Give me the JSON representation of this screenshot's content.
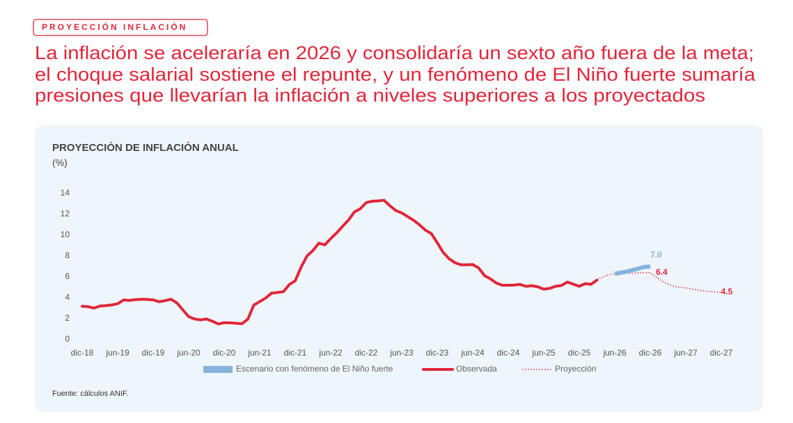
{
  "header": {
    "tag": "PROYECCIÓN INFLACIÓN",
    "title_lines": [
      "La inflación se aceleraría en 2026 y consolidaría un sexto año fuera de la meta;",
      "el choque salarial sostiene el repunte, y un fenómeno de El Niño fuerte sumaría",
      "presiones que llevarían la inflación a niveles superiores a los proyectados"
    ]
  },
  "chart_data": {
    "type": "line",
    "title": "PROYECCIÓN DE INFLACIÓN ANUAL",
    "y_label": "(%)",
    "categories": [
      "dic-18",
      null,
      null,
      null,
      null,
      null,
      "jun-19",
      null,
      null,
      null,
      null,
      null,
      "dic-19",
      null,
      null,
      null,
      null,
      null,
      "jun-20",
      null,
      null,
      null,
      null,
      null,
      "dic-20",
      null,
      null,
      null,
      null,
      null,
      "jun-21",
      null,
      null,
      null,
      null,
      null,
      "dic-21",
      null,
      null,
      null,
      null,
      null,
      "jun-22",
      null,
      null,
      null,
      null,
      null,
      "dic-22",
      null,
      null,
      null,
      null,
      null,
      "jun-23",
      null,
      null,
      null,
      null,
      null,
      "dic-23",
      null,
      null,
      null,
      null,
      null,
      "jun-24",
      null,
      null,
      null,
      null,
      null,
      "dic-24",
      null,
      null,
      null,
      null,
      null,
      "jun-25",
      null,
      null,
      null,
      null,
      null,
      "dic-25",
      null,
      null,
      null,
      null,
      null,
      "jun-26",
      null,
      null,
      null,
      null,
      null,
      "dic-26",
      null,
      null,
      null,
      null,
      null,
      "jun-27",
      null,
      null,
      null,
      null,
      null,
      "dic-27"
    ],
    "ylim": [
      0,
      14
    ],
    "yticks": [
      0,
      2,
      4,
      6,
      8,
      10,
      12,
      14
    ],
    "grid": false,
    "legend": "bottom",
    "series": [
      {
        "name": "Escenario con fenómeno de El Niño fuerte",
        "color": "#86b3dc",
        "line_style": "band",
        "values": [
          null,
          null,
          null,
          null,
          null,
          null,
          null,
          null,
          null,
          null,
          null,
          null,
          null,
          null,
          null,
          null,
          null,
          null,
          null,
          null,
          null,
          null,
          null,
          null,
          null,
          null,
          null,
          null,
          null,
          null,
          null,
          null,
          null,
          null,
          null,
          null,
          null,
          null,
          null,
          null,
          null,
          null,
          null,
          null,
          null,
          null,
          null,
          null,
          null,
          null,
          null,
          null,
          null,
          null,
          null,
          null,
          null,
          null,
          null,
          null,
          null,
          null,
          null,
          null,
          null,
          null,
          null,
          null,
          null,
          null,
          null,
          null,
          null,
          null,
          null,
          null,
          null,
          null,
          null,
          null,
          null,
          null,
          null,
          null,
          null,
          null,
          null,
          null,
          null,
          null,
          6.3,
          6.4,
          6.5,
          6.65,
          6.8,
          6.95,
          7.0,
          null,
          null,
          null,
          null,
          null,
          null,
          null,
          null,
          null,
          null,
          null,
          null
        ],
        "value_labels": [
          null,
          null,
          null,
          null,
          null,
          null,
          null,
          null,
          null,
          null,
          null,
          null,
          null,
          null,
          null,
          null,
          null,
          null,
          null,
          null,
          null,
          null,
          null,
          null,
          null,
          null,
          null,
          null,
          null,
          null,
          null,
          null,
          null,
          null,
          null,
          null,
          null,
          null,
          null,
          null,
          null,
          null,
          null,
          null,
          null,
          null,
          null,
          null,
          null,
          null,
          null,
          null,
          null,
          null,
          null,
          null,
          null,
          null,
          null,
          null,
          null,
          null,
          null,
          null,
          null,
          null,
          null,
          null,
          null,
          null,
          null,
          null,
          null,
          null,
          null,
          null,
          null,
          null,
          null,
          null,
          null,
          null,
          null,
          null,
          null,
          null,
          null,
          null,
          null,
          null,
          null,
          null,
          null,
          null,
          null,
          null,
          "7.0",
          null,
          null,
          null,
          null,
          null,
          null,
          null,
          null,
          null,
          null,
          null,
          null
        ]
      },
      {
        "name": "Observada",
        "color": "#e0263a",
        "line_style": "solid",
        "values": [
          3.18,
          3.15,
          3.01,
          3.21,
          3.25,
          3.31,
          3.43,
          3.79,
          3.75,
          3.82,
          3.86,
          3.84,
          3.8,
          3.62,
          3.72,
          3.86,
          3.51,
          2.85,
          2.19,
          1.97,
          1.88,
          1.97,
          1.75,
          1.49,
          1.61,
          1.6,
          1.56,
          1.51,
          1.95,
          3.3,
          3.63,
          3.97,
          4.44,
          4.51,
          4.58,
          5.26,
          5.62,
          6.94,
          8.01,
          8.53,
          9.23,
          9.07,
          9.67,
          10.21,
          10.84,
          11.44,
          12.22,
          12.53,
          13.12,
          13.25,
          13.28,
          13.34,
          12.82,
          12.36,
          12.13,
          11.78,
          11.43,
          10.99,
          10.48,
          10.15,
          9.28,
          8.35,
          7.74,
          7.36,
          7.16,
          7.16,
          7.18,
          6.86,
          6.12,
          5.81,
          5.41,
          5.2,
          5.2,
          5.22,
          5.28,
          5.09,
          5.16,
          5.05,
          4.82,
          4.9,
          5.1,
          5.18,
          5.51,
          5.3,
          5.1,
          5.35,
          5.29,
          5.7,
          null,
          null,
          null,
          null,
          null,
          null,
          null,
          null,
          null,
          null,
          null,
          null,
          null,
          null,
          null,
          null,
          null,
          null,
          null,
          null,
          null
        ]
      },
      {
        "name": "Proyección",
        "color": "#e0263a",
        "line_style": "dotted",
        "values": [
          null,
          null,
          null,
          null,
          null,
          null,
          null,
          null,
          null,
          null,
          null,
          null,
          null,
          null,
          null,
          null,
          null,
          null,
          null,
          null,
          null,
          null,
          null,
          null,
          null,
          null,
          null,
          null,
          null,
          null,
          null,
          null,
          null,
          null,
          null,
          null,
          null,
          null,
          null,
          null,
          null,
          null,
          null,
          null,
          null,
          null,
          null,
          null,
          null,
          null,
          null,
          null,
          null,
          null,
          null,
          null,
          null,
          null,
          null,
          null,
          null,
          null,
          null,
          null,
          null,
          null,
          null,
          null,
          null,
          null,
          null,
          null,
          null,
          null,
          null,
          null,
          null,
          null,
          null,
          null,
          null,
          null,
          null,
          null,
          null,
          null,
          null,
          5.7,
          6.0,
          6.2,
          6.3,
          6.3,
          6.35,
          6.35,
          6.4,
          6.4,
          6.4,
          6.0,
          5.6,
          5.3,
          5.1,
          5.0,
          4.95,
          4.85,
          4.75,
          4.65,
          4.6,
          4.55,
          4.5
        ],
        "value_labels": [
          null,
          null,
          null,
          null,
          null,
          null,
          null,
          null,
          null,
          null,
          null,
          null,
          null,
          null,
          null,
          null,
          null,
          null,
          null,
          null,
          null,
          null,
          null,
          null,
          null,
          null,
          null,
          null,
          null,
          null,
          null,
          null,
          null,
          null,
          null,
          null,
          null,
          null,
          null,
          null,
          null,
          null,
          null,
          null,
          null,
          null,
          null,
          null,
          null,
          null,
          null,
          null,
          null,
          null,
          null,
          null,
          null,
          null,
          null,
          null,
          null,
          null,
          null,
          null,
          null,
          null,
          null,
          null,
          null,
          null,
          null,
          null,
          null,
          null,
          null,
          null,
          null,
          null,
          null,
          null,
          null,
          null,
          null,
          null,
          null,
          null,
          null,
          null,
          null,
          null,
          null,
          null,
          null,
          null,
          null,
          null,
          "6.4",
          null,
          null,
          null,
          null,
          null,
          null,
          null,
          null,
          null,
          null,
          "4.5"
        ]
      }
    ]
  },
  "footer": {
    "source": "Fuente: cálculos ANIF."
  }
}
